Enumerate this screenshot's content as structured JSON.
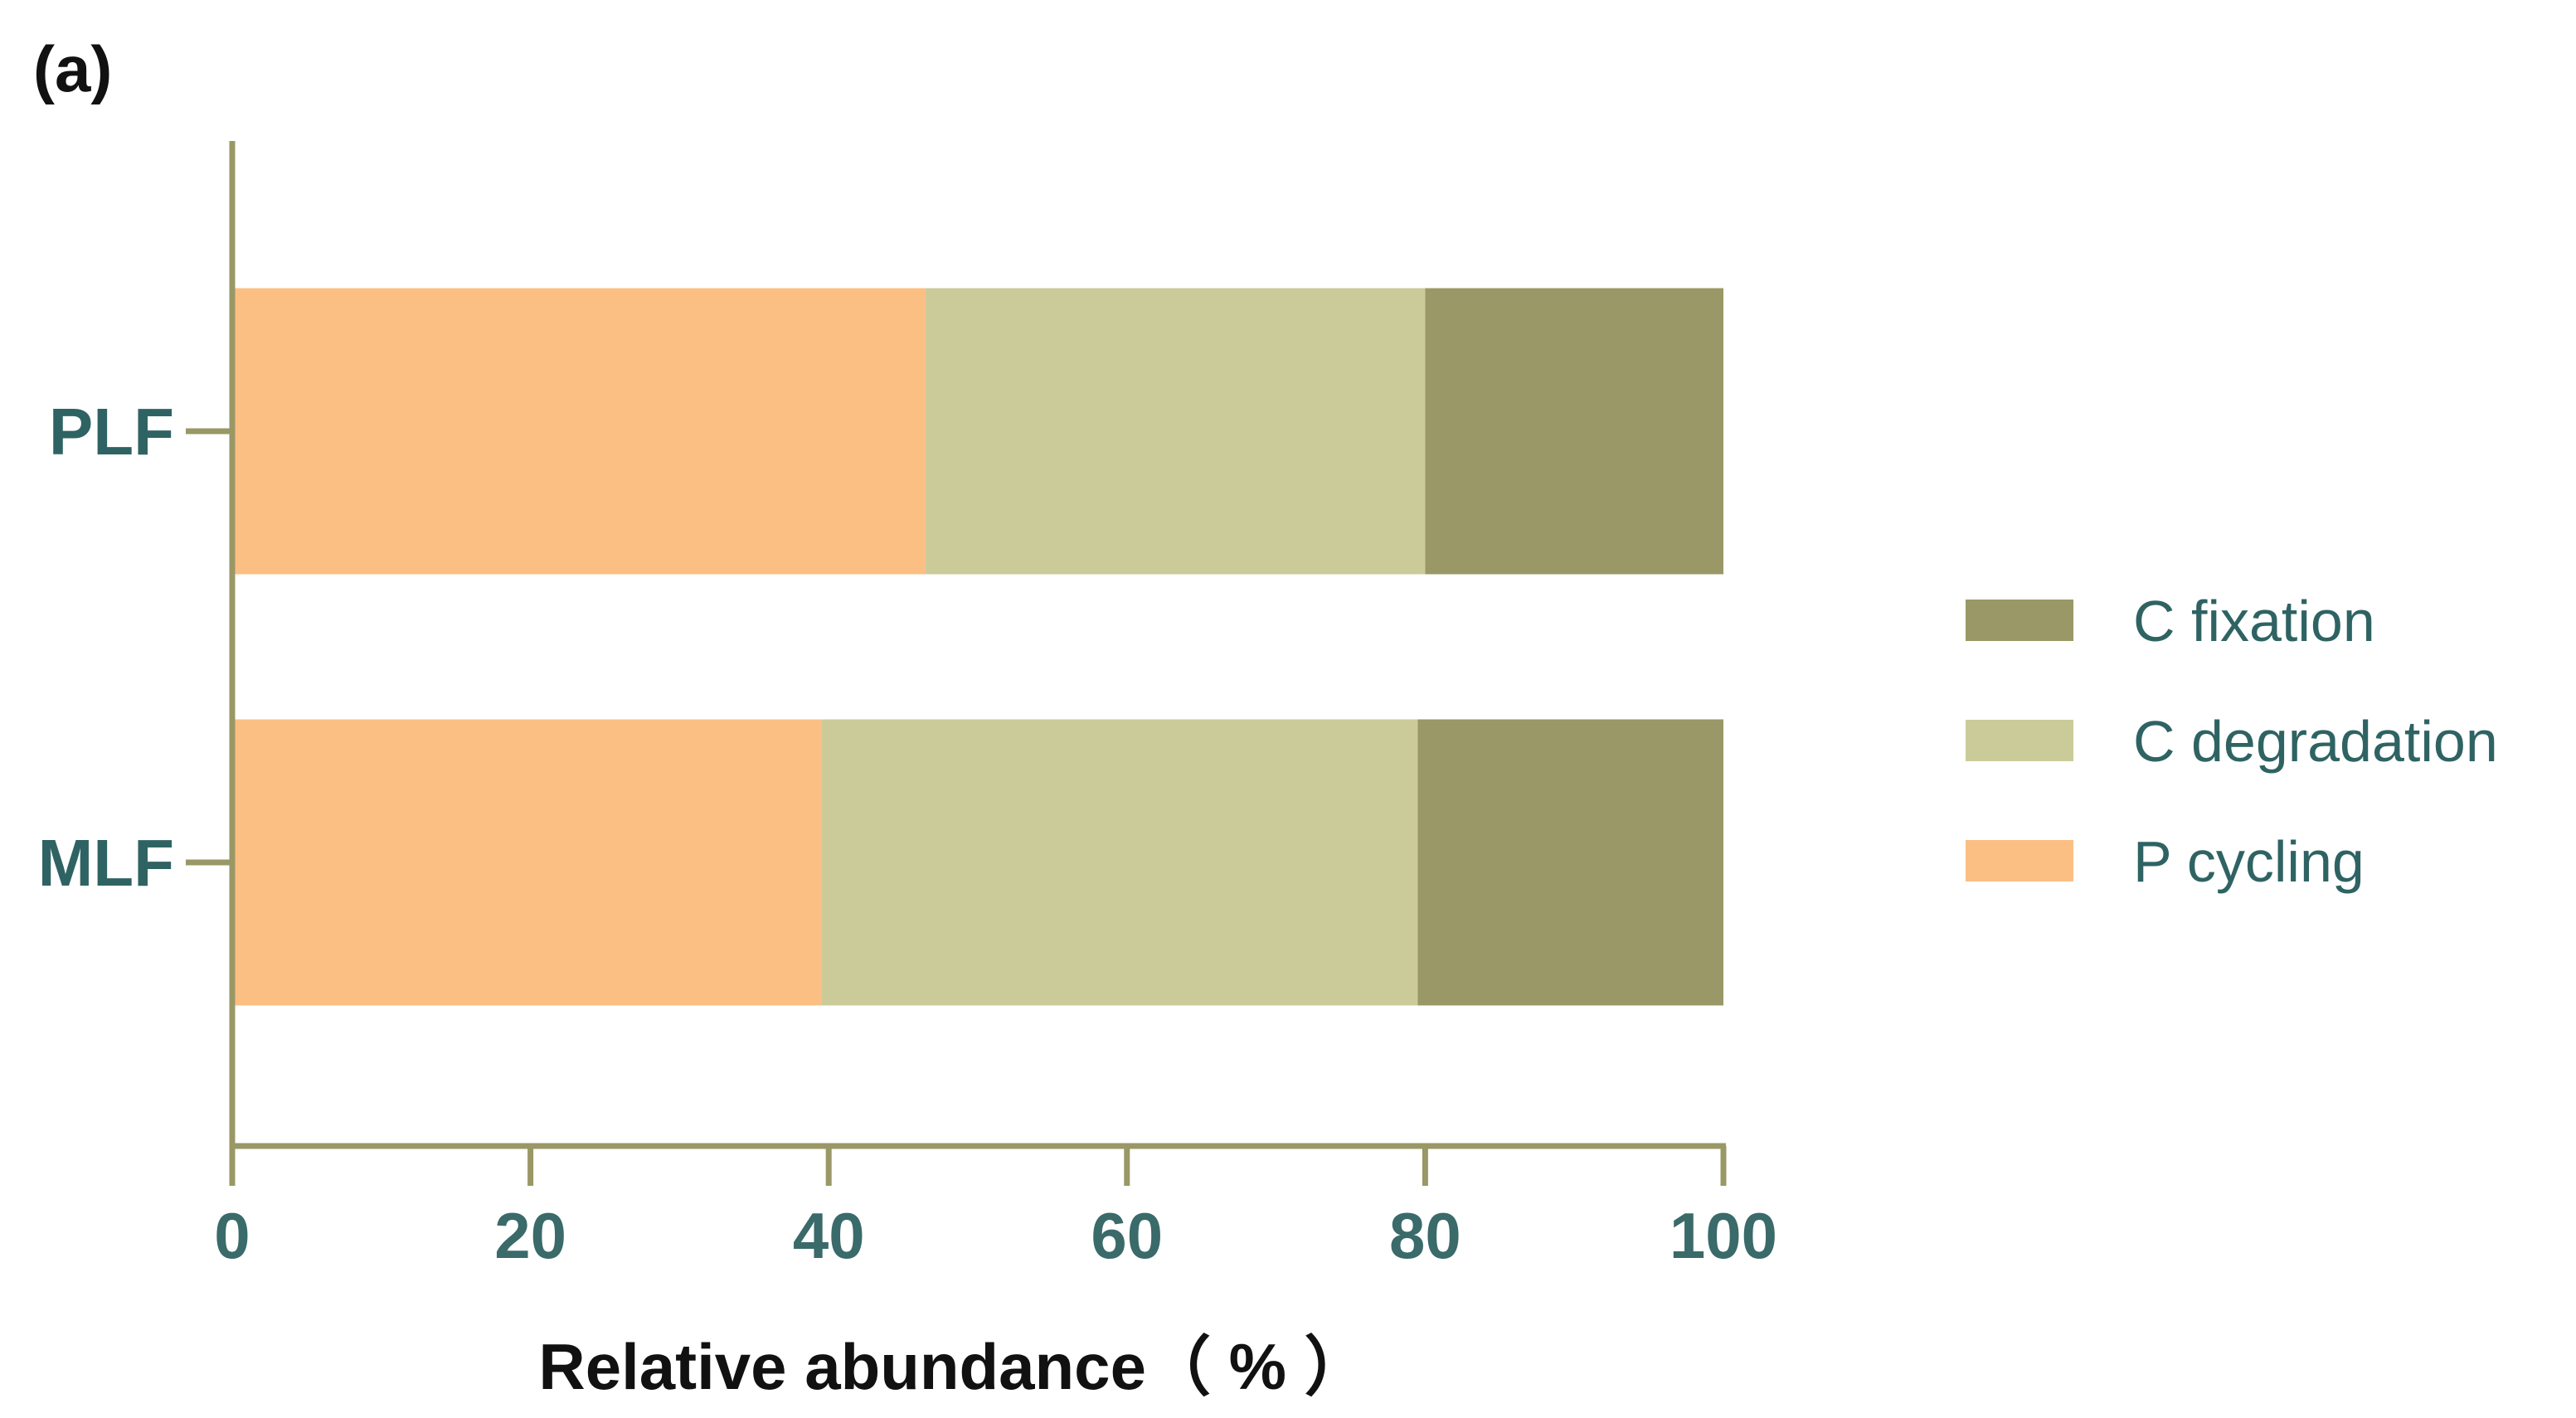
{
  "panel_label": "(a)",
  "chart_data": {
    "type": "bar",
    "orientation": "horizontal",
    "stacked": true,
    "categories": [
      "PLF",
      "MLF"
    ],
    "series": [
      {
        "name": "P cycling",
        "color": "#fbbf84",
        "values": [
          46.5,
          39.5
        ]
      },
      {
        "name": "C degradation",
        "color": "#cbcb9a",
        "values": [
          33.5,
          40.0
        ]
      },
      {
        "name": "C fixation",
        "color": "#999866",
        "values": [
          20.0,
          20.5
        ]
      }
    ],
    "xlim": [
      0,
      100
    ],
    "xticks": [
      "0",
      "20",
      "40",
      "60",
      "80",
      "100"
    ],
    "xlabel": "Relative abundance（ % ）",
    "ylabel": "",
    "legend": {
      "position": "right",
      "order": [
        "C fixation",
        "C degradation",
        "P cycling"
      ]
    },
    "axis_color": "#999866"
  }
}
